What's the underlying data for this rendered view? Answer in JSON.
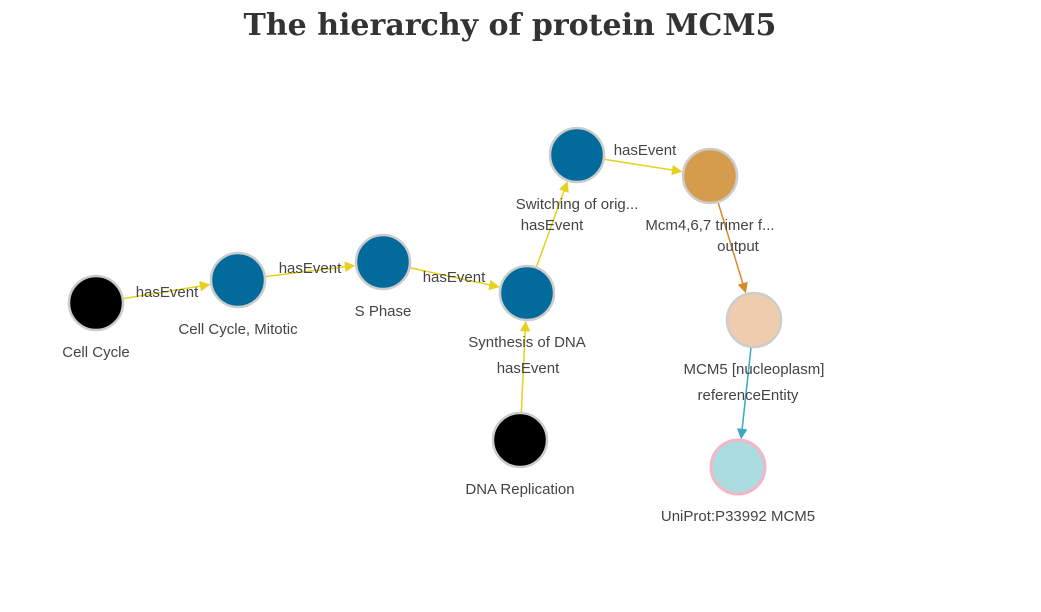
{
  "title": "The hierarchy of protein MCM5",
  "colors": {
    "reaction": "#036a9c",
    "pathway_root": "#000000",
    "complex": "#d59c4d",
    "physical_entity": "#f0ccaf",
    "reference_entity": "#abdde0",
    "edge_hasEvent": "#e4d21e",
    "edge_output": "#d8892d",
    "edge_referenceEntity": "#3aa7c4",
    "node_stroke": "#cccccc",
    "reference_stroke": "#f2b6c6"
  },
  "nodes": [
    {
      "id": "cell-cycle",
      "label": "Cell Cycle",
      "type": "pathway_root"
    },
    {
      "id": "cell-cycle-mitotic",
      "label": "Cell Cycle, Mitotic",
      "type": "reaction"
    },
    {
      "id": "s-phase",
      "label": "S Phase",
      "type": "reaction"
    },
    {
      "id": "synthesis-of-dna",
      "label": "Synthesis of DNA",
      "type": "reaction"
    },
    {
      "id": "switching-of-orig",
      "label": "Switching of orig...",
      "type": "reaction"
    },
    {
      "id": "mcm467-trimer",
      "label": "Mcm4,6,7 trimer f...",
      "type": "complex"
    },
    {
      "id": "mcm5-nucleoplasm",
      "label": "MCM5 [nucleoplasm]",
      "type": "physical_entity"
    },
    {
      "id": "uniprot-p33992",
      "label": "UniProt:P33992 MCM5",
      "type": "reference_entity"
    },
    {
      "id": "dna-replication",
      "label": "DNA Replication",
      "type": "pathway_root"
    }
  ],
  "edges": [
    {
      "id": "e1",
      "source": "cell-cycle",
      "target": "cell-cycle-mitotic",
      "label": "hasEvent",
      "kind": "edge_hasEvent"
    },
    {
      "id": "e2",
      "source": "cell-cycle-mitotic",
      "target": "s-phase",
      "label": "hasEvent",
      "kind": "edge_hasEvent"
    },
    {
      "id": "e3",
      "source": "s-phase",
      "target": "synthesis-of-dna",
      "label": "hasEvent",
      "kind": "edge_hasEvent"
    },
    {
      "id": "e4",
      "source": "synthesis-of-dna",
      "target": "switching-of-orig",
      "label": "hasEvent",
      "kind": "edge_hasEvent"
    },
    {
      "id": "e5",
      "source": "dna-replication",
      "target": "synthesis-of-dna",
      "label": "hasEvent",
      "kind": "edge_hasEvent"
    },
    {
      "id": "e6",
      "source": "switching-of-orig",
      "target": "mcm467-trimer",
      "label": "hasEvent",
      "kind": "edge_hasEvent"
    },
    {
      "id": "e7",
      "source": "mcm467-trimer",
      "target": "mcm5-nucleoplasm",
      "label": "output",
      "kind": "edge_output"
    },
    {
      "id": "e8",
      "source": "mcm5-nucleoplasm",
      "target": "uniprot-p33992",
      "label": "referenceEntity",
      "kind": "edge_referenceEntity"
    }
  ]
}
